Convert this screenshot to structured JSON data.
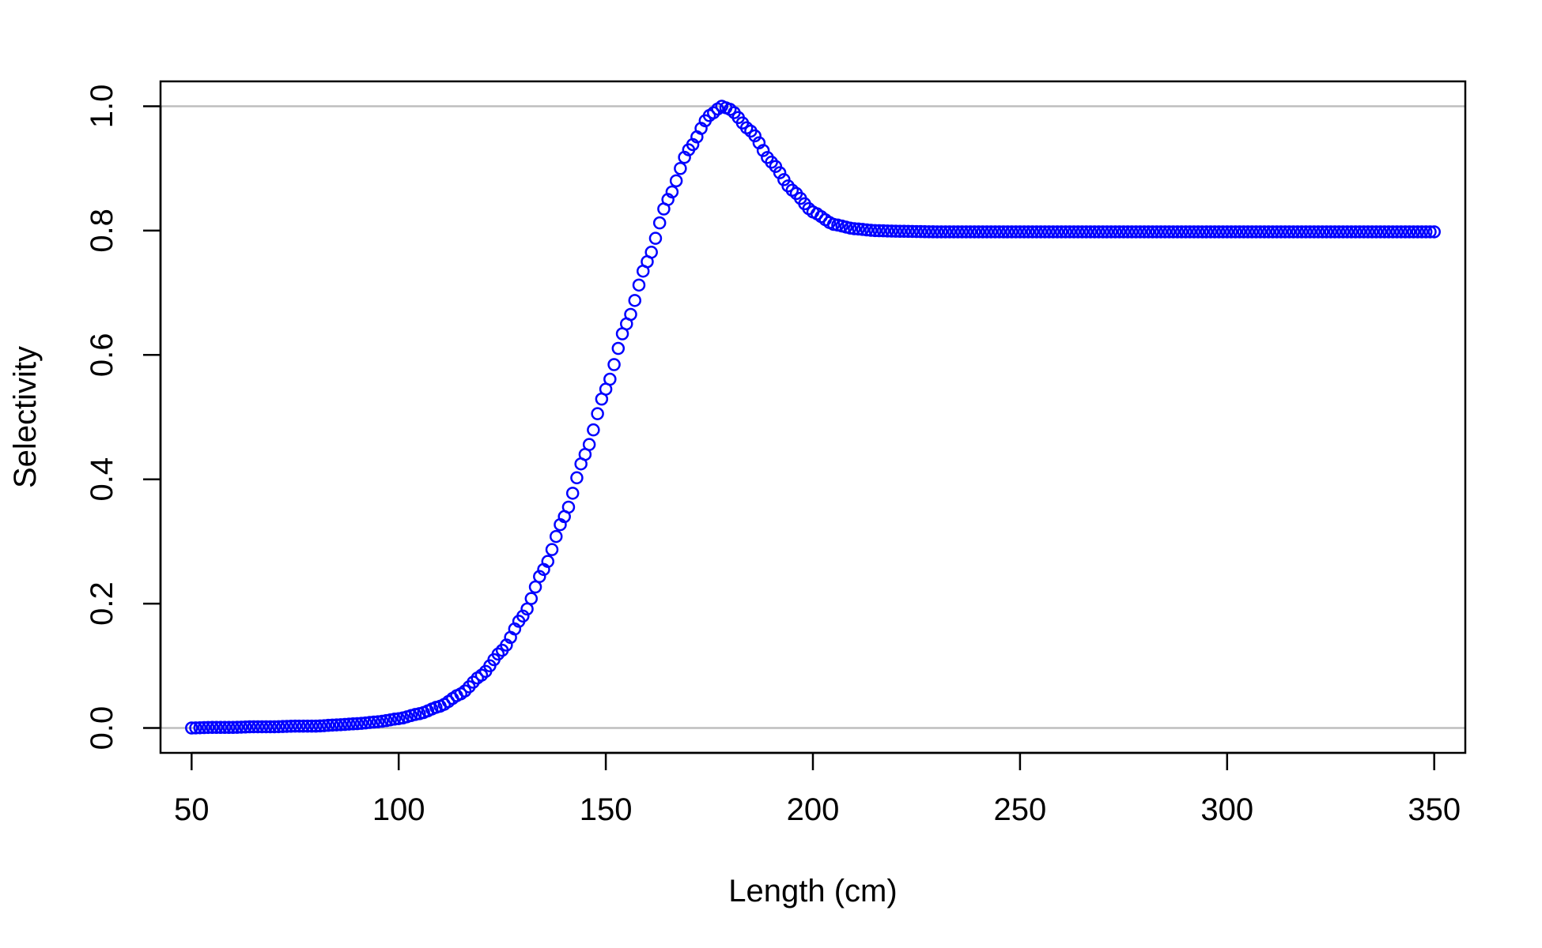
{
  "chart_data": {
    "type": "scatter",
    "title": "",
    "xlabel": "Length (cm)",
    "ylabel": "Selectivity",
    "xlim": [
      42.5,
      357.5
    ],
    "ylim": [
      -0.04,
      1.04
    ],
    "xticks": [
      50,
      100,
      150,
      200,
      250,
      300,
      350
    ],
    "yticks": [
      0.0,
      0.2,
      0.4,
      0.6,
      0.8,
      1.0
    ],
    "xtick_labels": [
      "50",
      "100",
      "150",
      "200",
      "250",
      "300",
      "350"
    ],
    "ytick_labels": [
      "0.0",
      "0.2",
      "0.4",
      "0.6",
      "0.8",
      "1.0"
    ],
    "reference_lines_y": [
      0,
      1
    ],
    "marker": "open-circle",
    "grid": false,
    "legend": "none",
    "colors": {
      "points": "#0000ff",
      "reference": "#bebebe",
      "axes": "#000000"
    },
    "series": [
      {
        "points": [
          [
            50,
            0.0
          ],
          [
            55,
            0.001
          ],
          [
            60,
            0.001
          ],
          [
            65,
            0.002
          ],
          [
            70,
            0.002
          ],
          [
            75,
            0.003
          ],
          [
            80,
            0.003
          ],
          [
            85,
            0.005
          ],
          [
            90,
            0.007
          ],
          [
            95,
            0.01
          ],
          [
            100,
            0.015
          ],
          [
            105,
            0.023
          ],
          [
            110,
            0.035
          ],
          [
            115,
            0.055
          ],
          [
            120,
            0.085
          ],
          [
            125,
            0.125
          ],
          [
            130,
            0.18
          ],
          [
            135,
            0.255
          ],
          [
            140,
            0.34
          ],
          [
            145,
            0.44
          ],
          [
            150,
            0.545
          ],
          [
            155,
            0.65
          ],
          [
            160,
            0.75
          ],
          [
            165,
            0.85
          ],
          [
            170,
            0.93
          ],
          [
            175,
            0.985
          ],
          [
            178,
            1.0
          ],
          [
            180,
            0.995
          ],
          [
            185,
            0.96
          ],
          [
            190,
            0.91
          ],
          [
            195,
            0.865
          ],
          [
            200,
            0.83
          ],
          [
            205,
            0.81
          ],
          [
            210,
            0.803
          ],
          [
            215,
            0.8
          ],
          [
            220,
            0.799
          ],
          [
            230,
            0.798
          ],
          [
            240,
            0.798
          ],
          [
            250,
            0.798
          ],
          [
            260,
            0.798
          ],
          [
            270,
            0.798
          ],
          [
            280,
            0.798
          ],
          [
            290,
            0.798
          ],
          [
            300,
            0.798
          ],
          [
            310,
            0.798
          ],
          [
            320,
            0.798
          ],
          [
            330,
            0.798
          ],
          [
            340,
            0.798
          ],
          [
            350,
            0.798
          ]
        ]
      }
    ]
  }
}
